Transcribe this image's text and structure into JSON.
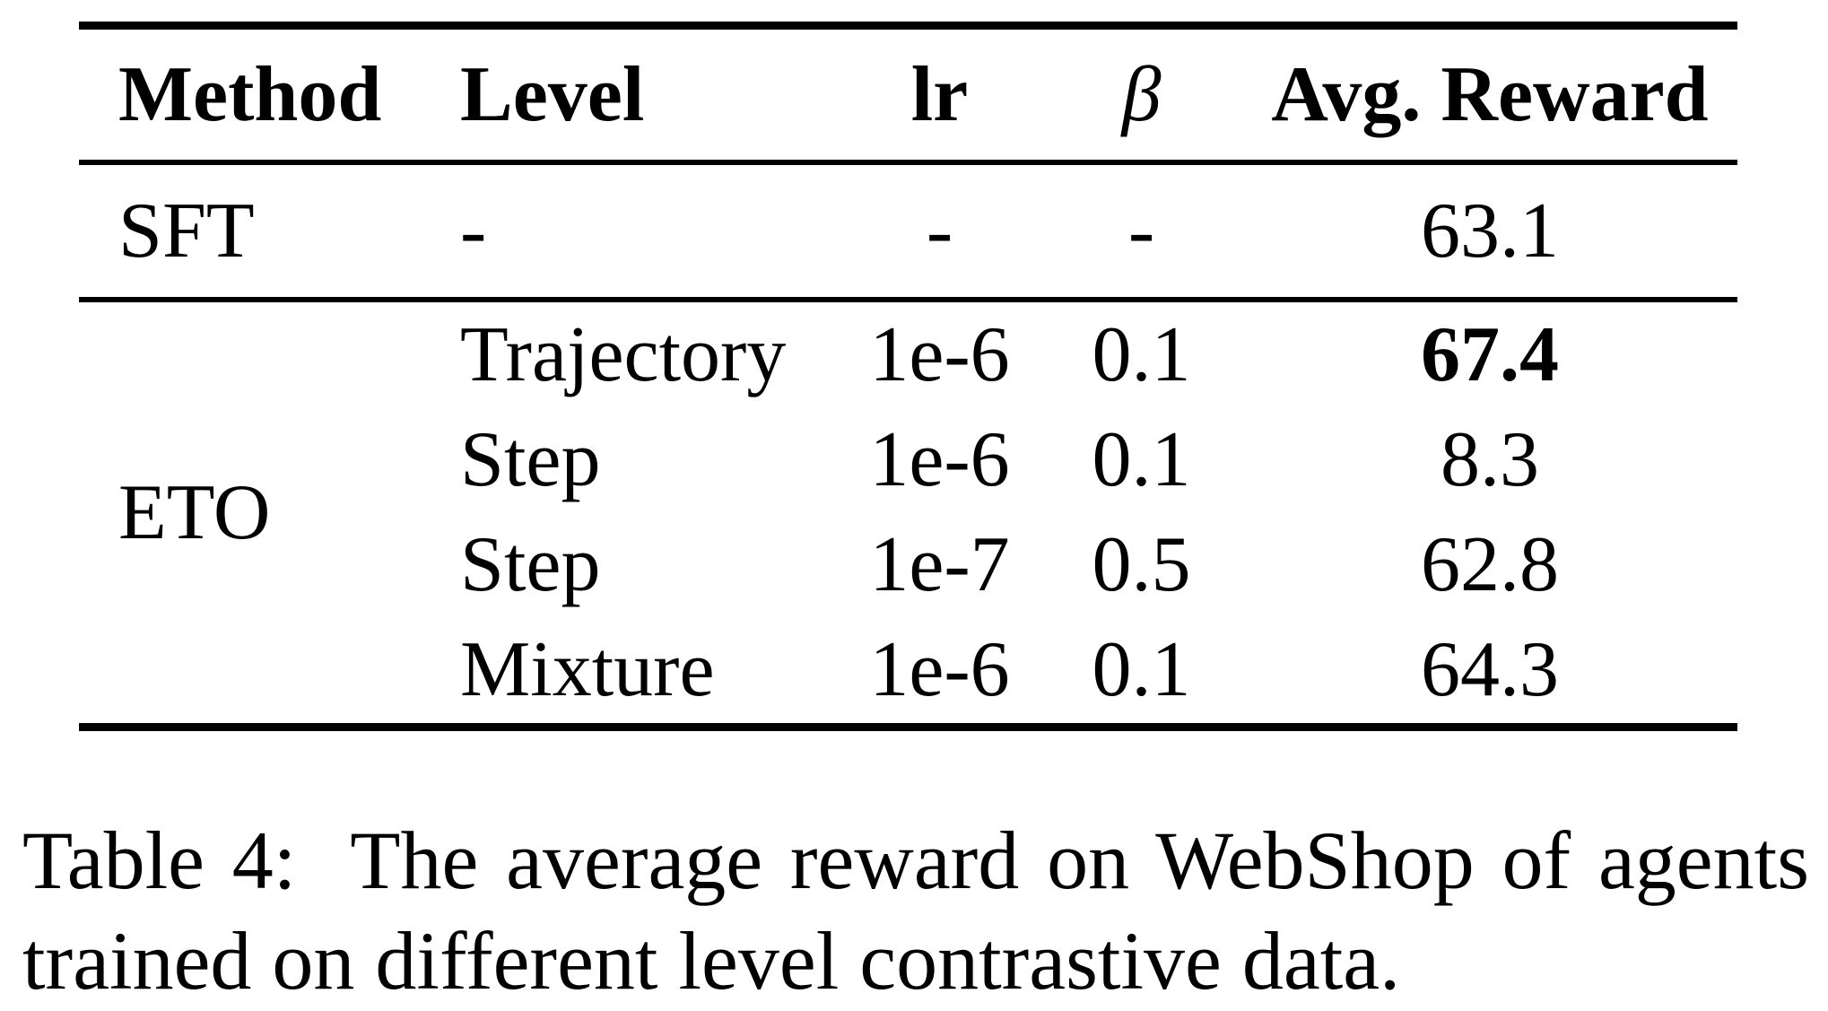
{
  "table": {
    "header": {
      "method": "Method",
      "level": "Level",
      "lr": "lr",
      "beta": "β",
      "reward": "Avg. Reward"
    },
    "sft": {
      "method": "SFT",
      "level": "-",
      "lr": "-",
      "beta": "-",
      "reward": "63.1"
    },
    "eto": {
      "method": "ETO",
      "rows": [
        {
          "level": "Trajectory",
          "lr": "1e-6",
          "beta": "0.1",
          "reward": "67.4"
        },
        {
          "level": "Step",
          "lr": "1e-6",
          "beta": "0.1",
          "reward": "8.3"
        },
        {
          "level": "Step",
          "lr": "1e-7",
          "beta": "0.5",
          "reward": "62.8"
        },
        {
          "level": "Mixture",
          "lr": "1e-6",
          "beta": "0.1",
          "reward": "64.3"
        }
      ]
    }
  },
  "caption": {
    "lines": [
      "Table 4:  The average reward on WebShop of agents",
      "trained on different level contrastive data."
    ]
  }
}
